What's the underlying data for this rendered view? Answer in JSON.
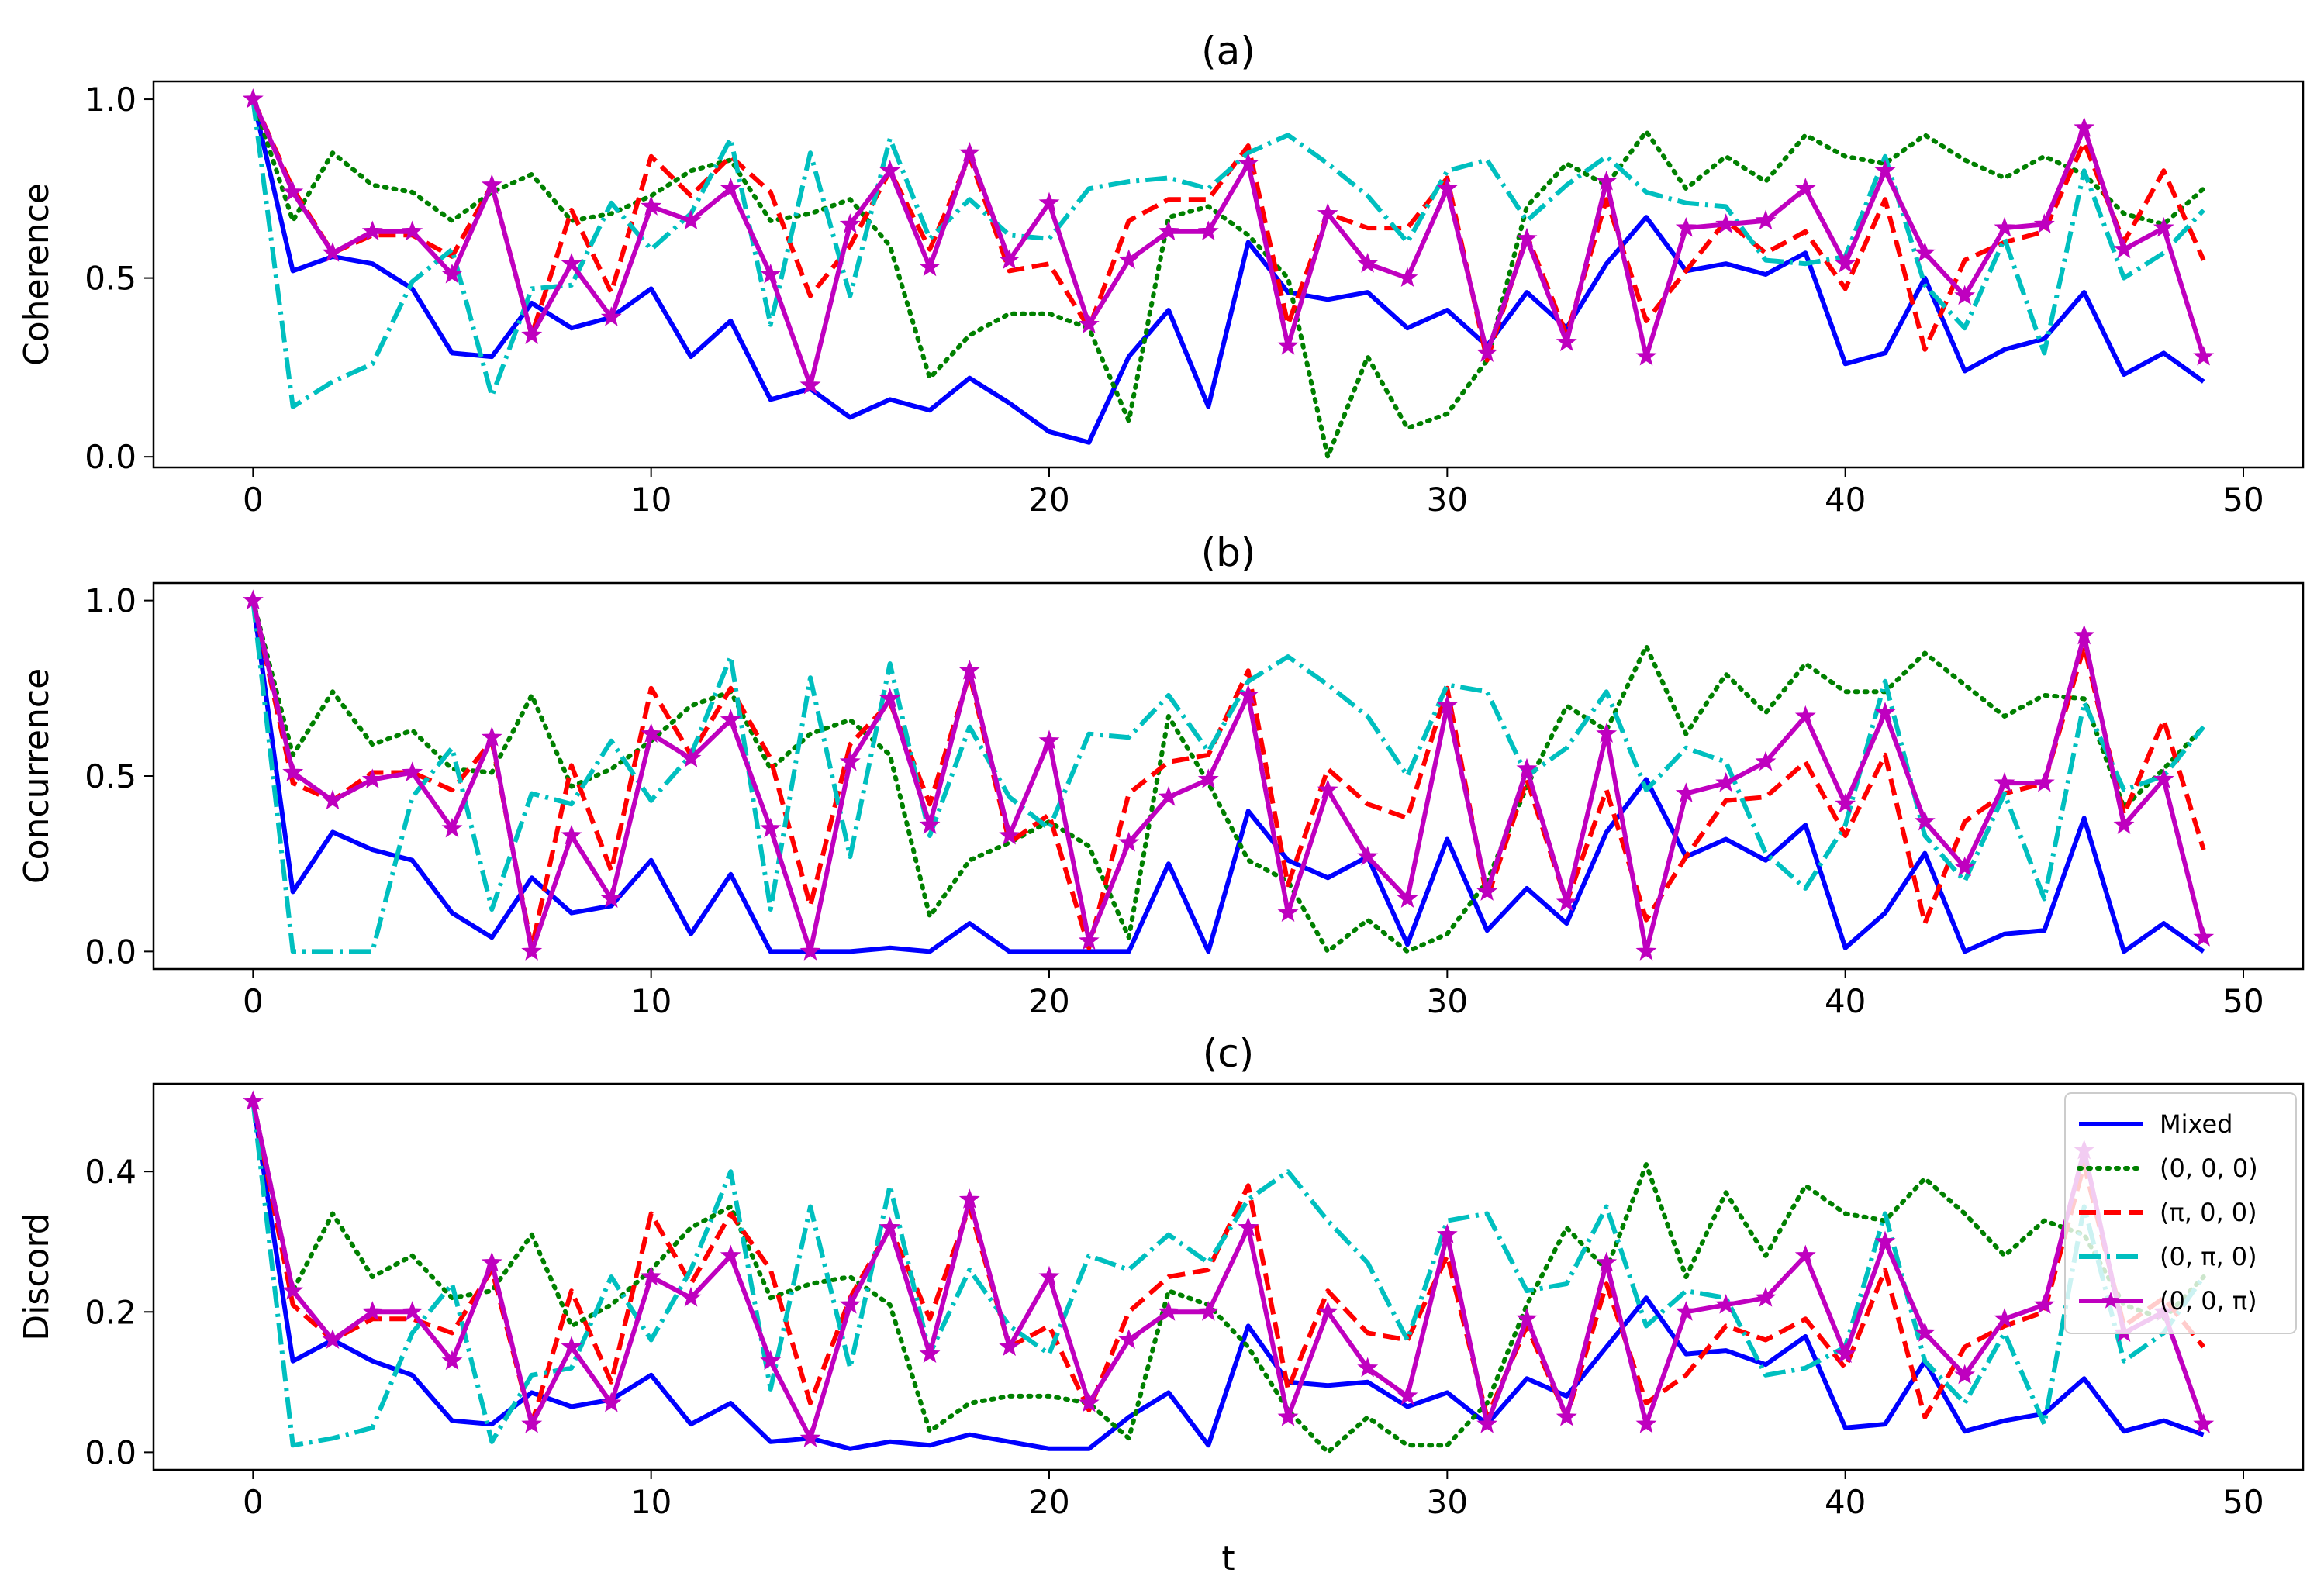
{
  "figure": {
    "xlabel": "t",
    "legend_location": "right, lower panel"
  },
  "legend": [
    {
      "key": "mixed",
      "label": "Mixed"
    },
    {
      "key": "s000",
      "label": "(0, 0, 0)"
    },
    {
      "key": "spi00",
      "label": "(π, 0, 0)"
    },
    {
      "key": "s0pi0",
      "label": "(0, π, 0)"
    },
    {
      "key": "s00pi",
      "label": "(0, 0, π)"
    }
  ],
  "series_styles": {
    "mixed": {
      "color": "#0000ff",
      "dash": "",
      "marker": ""
    },
    "s000": {
      "color": "#008000",
      "dash": "3,9",
      "marker": ""
    },
    "spi00": {
      "color": "#ff0000",
      "dash": "22,10",
      "marker": ""
    },
    "s0pi0": {
      "color": "#00bfbf",
      "dash": "28,8,4,8",
      "marker": ""
    },
    "s00pi": {
      "color": "#bf00bf",
      "dash": "",
      "marker": "star"
    }
  },
  "chart_data": [
    {
      "type": "line",
      "title": "(a)",
      "xlabel": "",
      "ylabel": "Coherence",
      "xlim": [
        -2.5,
        51.5
      ],
      "ylim": [
        -0.03,
        1.05
      ],
      "xticks": [
        0,
        10,
        20,
        30,
        40,
        50
      ],
      "yticks": [
        0.0,
        0.5,
        1.0
      ],
      "ytick_labels": [
        "0.0",
        "0.5",
        "1.0"
      ],
      "x_range": [
        0,
        49
      ],
      "series": [
        {
          "key": "mixed",
          "name": "Mixed",
          "values": [
            1.0,
            0.52,
            0.56,
            0.54,
            0.47,
            0.29,
            0.28,
            0.43,
            0.36,
            0.39,
            0.47,
            0.28,
            0.38,
            0.16,
            0.19,
            0.11,
            0.16,
            0.13,
            0.22,
            0.15,
            0.07,
            0.04,
            0.28,
            0.41,
            0.14,
            0.6,
            0.46,
            0.44,
            0.46,
            0.36,
            0.41,
            0.31,
            0.46,
            0.36,
            0.54,
            0.67,
            0.52,
            0.54,
            0.51,
            0.57,
            0.26,
            0.29,
            0.5,
            0.24,
            0.3,
            0.33,
            0.46,
            0.23,
            0.29,
            0.21
          ]
        },
        {
          "key": "s000",
          "name": "(0, 0, 0)",
          "values": [
            1.0,
            0.66,
            0.85,
            0.76,
            0.74,
            0.66,
            0.74,
            0.79,
            0.66,
            0.68,
            0.73,
            0.8,
            0.83,
            0.66,
            0.68,
            0.72,
            0.59,
            0.22,
            0.34,
            0.4,
            0.4,
            0.36,
            0.1,
            0.67,
            0.7,
            0.62,
            0.5,
            0.0,
            0.28,
            0.08,
            0.12,
            0.27,
            0.7,
            0.82,
            0.76,
            0.91,
            0.75,
            0.84,
            0.77,
            0.9,
            0.84,
            0.82,
            0.9,
            0.83,
            0.78,
            0.84,
            0.79,
            0.68,
            0.65,
            0.75
          ]
        },
        {
          "key": "spi00",
          "name": "(π, 0, 0)",
          "values": [
            1.0,
            0.75,
            0.57,
            0.62,
            0.62,
            0.56,
            0.76,
            0.34,
            0.69,
            0.46,
            0.84,
            0.73,
            0.84,
            0.74,
            0.45,
            0.59,
            0.8,
            0.58,
            0.84,
            0.52,
            0.54,
            0.36,
            0.66,
            0.72,
            0.72,
            0.87,
            0.37,
            0.68,
            0.64,
            0.64,
            0.78,
            0.27,
            0.62,
            0.34,
            0.72,
            0.38,
            0.52,
            0.66,
            0.57,
            0.63,
            0.47,
            0.72,
            0.3,
            0.55,
            0.6,
            0.63,
            0.88,
            0.6,
            0.8,
            0.55
          ]
        },
        {
          "key": "s0pi0",
          "name": "(0, π, 0)",
          "values": [
            1.0,
            0.14,
            0.21,
            0.26,
            0.49,
            0.58,
            0.17,
            0.47,
            0.48,
            0.71,
            0.58,
            0.68,
            0.89,
            0.37,
            0.85,
            0.45,
            0.89,
            0.61,
            0.72,
            0.62,
            0.61,
            0.75,
            0.77,
            0.78,
            0.75,
            0.85,
            0.9,
            0.82,
            0.73,
            0.6,
            0.8,
            0.83,
            0.66,
            0.76,
            0.84,
            0.74,
            0.71,
            0.7,
            0.55,
            0.54,
            0.56,
            0.84,
            0.48,
            0.36,
            0.61,
            0.29,
            0.8,
            0.5,
            0.57,
            0.69
          ]
        },
        {
          "key": "s00pi",
          "name": "(0, 0, π)",
          "values": [
            1.0,
            0.74,
            0.57,
            0.63,
            0.63,
            0.51,
            0.76,
            0.34,
            0.54,
            0.39,
            0.7,
            0.66,
            0.75,
            0.51,
            0.2,
            0.65,
            0.8,
            0.53,
            0.85,
            0.55,
            0.71,
            0.37,
            0.55,
            0.63,
            0.63,
            0.82,
            0.31,
            0.68,
            0.54,
            0.5,
            0.75,
            0.29,
            0.61,
            0.32,
            0.77,
            0.28,
            0.64,
            0.65,
            0.66,
            0.75,
            0.54,
            0.8,
            0.57,
            0.45,
            0.64,
            0.65,
            0.92,
            0.58,
            0.64,
            0.28
          ]
        }
      ]
    },
    {
      "type": "line",
      "title": "(b)",
      "xlabel": "",
      "ylabel": "Concurrence",
      "xlim": [
        -2.5,
        51.5
      ],
      "ylim": [
        -0.05,
        1.05
      ],
      "xticks": [
        0,
        10,
        20,
        30,
        40,
        50
      ],
      "yticks": [
        0.0,
        0.5,
        1.0
      ],
      "ytick_labels": [
        "0.0",
        "0.5",
        "1.0"
      ],
      "x_range": [
        0,
        49
      ],
      "series": [
        {
          "key": "mixed",
          "name": "Mixed",
          "values": [
            1.0,
            0.17,
            0.34,
            0.29,
            0.26,
            0.11,
            0.04,
            0.21,
            0.11,
            0.13,
            0.26,
            0.05,
            0.22,
            0.0,
            0.0,
            0.0,
            0.01,
            0.0,
            0.08,
            0.0,
            0.0,
            0.0,
            0.0,
            0.25,
            0.0,
            0.4,
            0.26,
            0.21,
            0.27,
            0.02,
            0.32,
            0.06,
            0.18,
            0.08,
            0.34,
            0.49,
            0.27,
            0.32,
            0.26,
            0.36,
            0.01,
            0.11,
            0.28,
            0.0,
            0.05,
            0.06,
            0.38,
            0.0,
            0.08,
            0.0
          ]
        },
        {
          "key": "s000",
          "name": "(0, 0, 0)",
          "values": [
            1.0,
            0.56,
            0.74,
            0.59,
            0.63,
            0.52,
            0.51,
            0.73,
            0.47,
            0.52,
            0.6,
            0.7,
            0.74,
            0.52,
            0.62,
            0.66,
            0.56,
            0.1,
            0.26,
            0.31,
            0.37,
            0.3,
            0.04,
            0.67,
            0.48,
            0.26,
            0.2,
            0.0,
            0.09,
            0.0,
            0.05,
            0.2,
            0.47,
            0.7,
            0.63,
            0.87,
            0.62,
            0.79,
            0.68,
            0.82,
            0.74,
            0.74,
            0.85,
            0.76,
            0.67,
            0.73,
            0.72,
            0.41,
            0.52,
            0.64
          ]
        },
        {
          "key": "spi00",
          "name": "(π, 0, 0)",
          "values": [
            1.0,
            0.48,
            0.43,
            0.51,
            0.51,
            0.46,
            0.6,
            0.01,
            0.53,
            0.23,
            0.75,
            0.56,
            0.75,
            0.55,
            0.13,
            0.59,
            0.71,
            0.42,
            0.79,
            0.31,
            0.39,
            0.01,
            0.45,
            0.54,
            0.56,
            0.8,
            0.19,
            0.52,
            0.42,
            0.38,
            0.75,
            0.15,
            0.49,
            0.14,
            0.46,
            0.09,
            0.27,
            0.43,
            0.44,
            0.54,
            0.33,
            0.56,
            0.08,
            0.37,
            0.45,
            0.48,
            0.87,
            0.39,
            0.66,
            0.29
          ]
        },
        {
          "key": "s0pi0",
          "name": "(0, π, 0)",
          "values": [
            1.0,
            0.0,
            0.0,
            0.0,
            0.44,
            0.58,
            0.12,
            0.45,
            0.42,
            0.6,
            0.43,
            0.56,
            0.84,
            0.12,
            0.78,
            0.27,
            0.82,
            0.33,
            0.64,
            0.44,
            0.35,
            0.62,
            0.61,
            0.73,
            0.57,
            0.77,
            0.84,
            0.76,
            0.67,
            0.5,
            0.76,
            0.74,
            0.5,
            0.58,
            0.74,
            0.46,
            0.58,
            0.54,
            0.28,
            0.18,
            0.36,
            0.77,
            0.33,
            0.2,
            0.45,
            0.15,
            0.71,
            0.46,
            0.5,
            0.64
          ]
        },
        {
          "key": "s00pi",
          "name": "(0, 0, π)",
          "values": [
            1.0,
            0.51,
            0.43,
            0.49,
            0.51,
            0.35,
            0.61,
            0.0,
            0.33,
            0.15,
            0.62,
            0.55,
            0.66,
            0.35,
            0.0,
            0.54,
            0.72,
            0.36,
            0.8,
            0.33,
            0.6,
            0.03,
            0.31,
            0.44,
            0.49,
            0.73,
            0.11,
            0.46,
            0.27,
            0.15,
            0.7,
            0.17,
            0.52,
            0.14,
            0.62,
            0.0,
            0.45,
            0.48,
            0.54,
            0.67,
            0.42,
            0.68,
            0.37,
            0.24,
            0.48,
            0.48,
            0.9,
            0.36,
            0.49,
            0.04
          ]
        }
      ]
    },
    {
      "type": "line",
      "title": "(c)",
      "xlabel": "t",
      "ylabel": "Discord",
      "xlim": [
        -2.5,
        51.5
      ],
      "ylim": [
        -0.025,
        0.525
      ],
      "xticks": [
        0,
        10,
        20,
        30,
        40,
        50
      ],
      "yticks": [
        0.0,
        0.2,
        0.4
      ],
      "ytick_labels": [
        "0.0",
        "0.2",
        "0.4"
      ],
      "x_range": [
        0,
        49
      ],
      "series": [
        {
          "key": "mixed",
          "name": "Mixed",
          "values": [
            0.5,
            0.13,
            0.16,
            0.13,
            0.11,
            0.045,
            0.04,
            0.085,
            0.065,
            0.075,
            0.11,
            0.04,
            0.07,
            0.015,
            0.02,
            0.005,
            0.015,
            0.01,
            0.025,
            0.015,
            0.005,
            0.005,
            0.05,
            0.085,
            0.01,
            0.18,
            0.1,
            0.095,
            0.1,
            0.065,
            0.085,
            0.04,
            0.105,
            0.08,
            0.15,
            0.22,
            0.14,
            0.145,
            0.125,
            0.165,
            0.035,
            0.04,
            0.13,
            0.03,
            0.045,
            0.055,
            0.105,
            0.03,
            0.045,
            0.025
          ]
        },
        {
          "key": "s000",
          "name": "(0, 0, 0)",
          "values": [
            0.5,
            0.23,
            0.34,
            0.25,
            0.28,
            0.22,
            0.23,
            0.31,
            0.18,
            0.21,
            0.26,
            0.32,
            0.35,
            0.22,
            0.24,
            0.25,
            0.21,
            0.03,
            0.07,
            0.08,
            0.08,
            0.07,
            0.02,
            0.23,
            0.21,
            0.15,
            0.06,
            0.0,
            0.05,
            0.01,
            0.01,
            0.07,
            0.21,
            0.32,
            0.26,
            0.41,
            0.25,
            0.37,
            0.28,
            0.38,
            0.34,
            0.33,
            0.39,
            0.34,
            0.28,
            0.33,
            0.31,
            0.21,
            0.19,
            0.25
          ]
        },
        {
          "key": "spi00",
          "name": "(π, 0, 0)",
          "values": [
            0.5,
            0.21,
            0.16,
            0.19,
            0.19,
            0.17,
            0.26,
            0.04,
            0.23,
            0.1,
            0.34,
            0.24,
            0.34,
            0.26,
            0.07,
            0.22,
            0.32,
            0.19,
            0.35,
            0.15,
            0.18,
            0.06,
            0.2,
            0.25,
            0.26,
            0.38,
            0.09,
            0.23,
            0.17,
            0.16,
            0.28,
            0.05,
            0.18,
            0.05,
            0.24,
            0.07,
            0.11,
            0.18,
            0.16,
            0.19,
            0.12,
            0.26,
            0.05,
            0.15,
            0.18,
            0.2,
            0.41,
            0.18,
            0.22,
            0.15
          ]
        },
        {
          "key": "s0pi0",
          "name": "(0, π, 0)",
          "values": [
            0.5,
            0.01,
            0.02,
            0.035,
            0.17,
            0.24,
            0.015,
            0.11,
            0.12,
            0.25,
            0.16,
            0.26,
            0.4,
            0.09,
            0.35,
            0.12,
            0.38,
            0.14,
            0.26,
            0.18,
            0.14,
            0.28,
            0.26,
            0.31,
            0.27,
            0.36,
            0.4,
            0.33,
            0.27,
            0.16,
            0.33,
            0.34,
            0.23,
            0.24,
            0.35,
            0.18,
            0.23,
            0.22,
            0.11,
            0.12,
            0.15,
            0.34,
            0.13,
            0.07,
            0.17,
            0.04,
            0.35,
            0.13,
            0.17,
            0.25
          ]
        },
        {
          "key": "s00pi",
          "name": "(0, 0, π)",
          "values": [
            0.5,
            0.23,
            0.16,
            0.2,
            0.2,
            0.13,
            0.27,
            0.04,
            0.15,
            0.07,
            0.25,
            0.22,
            0.28,
            0.13,
            0.02,
            0.21,
            0.32,
            0.14,
            0.36,
            0.15,
            0.25,
            0.07,
            0.16,
            0.2,
            0.2,
            0.32,
            0.05,
            0.2,
            0.12,
            0.08,
            0.31,
            0.04,
            0.19,
            0.05,
            0.27,
            0.04,
            0.2,
            0.21,
            0.22,
            0.28,
            0.14,
            0.3,
            0.17,
            0.11,
            0.19,
            0.21,
            0.43,
            0.17,
            0.2,
            0.04
          ]
        }
      ]
    }
  ]
}
